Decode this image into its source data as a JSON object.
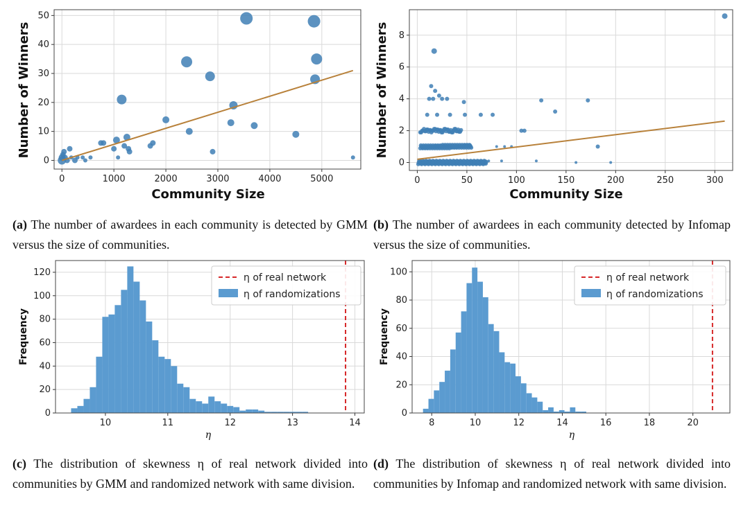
{
  "captions": {
    "a": {
      "tag": "(a)",
      "text": "The number of awardees in each community is detected by GMM versus the size of communities."
    },
    "b": {
      "tag": "(b)",
      "text": "The number of awardees in each community detected by Infomap versus the size of communities."
    },
    "c": {
      "tag": "(c)",
      "text": "The distribution of skewness η of real network divided into communities by GMM and randomized network with same division."
    },
    "d": {
      "tag": "(d)",
      "text": "The distribution of skewness η of real network divided into communities by Infomap and randomized network with same division."
    }
  },
  "colors": {
    "marker": "#3f7fb5",
    "bar": "#5b9bd0",
    "fit": "#b8813a",
    "real_line": "#d62728",
    "grid": "#d9d9d9"
  },
  "chart_data": [
    {
      "id": "a",
      "type": "scatter",
      "xlabel": "Community Size",
      "ylabel": "Number of Winners",
      "xlim": [
        -150,
        5750
      ],
      "ylim": [
        -3,
        52
      ],
      "xticks": [
        0,
        1000,
        2000,
        3000,
        4000,
        5000
      ],
      "yticks": [
        0,
        10,
        20,
        30,
        40,
        50
      ],
      "grid": true,
      "fit_line": {
        "x": [
          0,
          5600
        ],
        "y": [
          0,
          31
        ]
      },
      "points": [
        [
          0,
          0,
          6
        ],
        [
          5,
          1,
          5
        ],
        [
          20,
          2,
          4
        ],
        [
          40,
          3,
          4
        ],
        [
          60,
          1,
          4
        ],
        [
          100,
          0,
          4
        ],
        [
          150,
          4,
          4
        ],
        [
          180,
          1,
          3
        ],
        [
          250,
          0,
          4
        ],
        [
          300,
          1,
          3
        ],
        [
          400,
          1,
          3
        ],
        [
          450,
          0,
          3
        ],
        [
          550,
          1,
          3
        ],
        [
          750,
          6,
          4
        ],
        [
          800,
          6,
          4
        ],
        [
          1000,
          4,
          4
        ],
        [
          1050,
          7,
          5
        ],
        [
          1080,
          1,
          3
        ],
        [
          1150,
          21,
          7
        ],
        [
          1200,
          5,
          4
        ],
        [
          1250,
          8,
          5
        ],
        [
          1280,
          4,
          4
        ],
        [
          1300,
          3,
          4
        ],
        [
          1700,
          5,
          4
        ],
        [
          1750,
          6,
          4
        ],
        [
          2000,
          14,
          5
        ],
        [
          2400,
          34,
          8
        ],
        [
          2450,
          10,
          5
        ],
        [
          2850,
          29,
          7
        ],
        [
          2900,
          3,
          4
        ],
        [
          3250,
          13,
          5
        ],
        [
          3300,
          19,
          6
        ],
        [
          3550,
          49,
          9
        ],
        [
          3700,
          12,
          5
        ],
        [
          4500,
          9,
          5
        ],
        [
          4850,
          48,
          9
        ],
        [
          4900,
          35,
          8
        ],
        [
          4870,
          28,
          7
        ],
        [
          5600,
          1,
          3
        ]
      ]
    },
    {
      "id": "b",
      "type": "scatter",
      "xlabel": "Community Size",
      "ylabel": "Number of Winners",
      "xlim": [
        -8,
        318
      ],
      "ylim": [
        -0.5,
        9.6
      ],
      "xticks": [
        0,
        50,
        100,
        150,
        200,
        250,
        300
      ],
      "yticks": [
        0,
        2,
        4,
        6,
        8
      ],
      "grid": true,
      "fit_line": {
        "x": [
          0,
          310
        ],
        "y": [
          0.2,
          2.6
        ]
      },
      "points": [
        [
          310,
          9.2,
          4
        ],
        [
          17,
          7,
          4
        ],
        [
          14,
          4.8,
          3
        ],
        [
          18,
          4.5,
          3
        ],
        [
          22,
          4.2,
          3
        ],
        [
          12,
          4,
          3
        ],
        [
          16,
          4,
          3
        ],
        [
          25,
          4,
          3
        ],
        [
          30,
          4,
          3
        ],
        [
          47,
          3.8,
          3
        ],
        [
          125,
          3.9,
          3
        ],
        [
          172,
          3.9,
          3
        ],
        [
          139,
          3.2,
          3
        ],
        [
          10,
          3,
          3
        ],
        [
          20,
          3,
          3
        ],
        [
          33,
          3,
          3
        ],
        [
          48,
          3,
          3
        ],
        [
          64,
          3,
          3
        ],
        [
          76,
          3,
          3
        ],
        [
          105,
          2,
          3
        ],
        [
          108,
          2,
          3
        ],
        [
          182,
          1,
          3
        ],
        [
          195,
          0,
          2
        ],
        [
          160,
          0,
          2
        ],
        [
          120,
          0.1,
          2
        ],
        [
          85,
          0.1,
          2
        ],
        [
          72,
          0.1,
          2
        ],
        [
          95,
          1,
          2
        ],
        [
          88,
          1,
          2
        ],
        [
          80,
          1,
          2
        ]
      ],
      "bands": [
        {
          "y": 0,
          "x_from": 1,
          "x_to": 70,
          "count": 140
        },
        {
          "y": 1,
          "x_from": 3,
          "x_to": 55,
          "count": 85
        },
        {
          "y": 2,
          "x_from": 3,
          "x_to": 45,
          "count": 45
        }
      ]
    },
    {
      "id": "c",
      "type": "histogram",
      "xlabel": "η",
      "ylabel": "Frequency",
      "xlim": [
        9.2,
        14.15
      ],
      "ylim": [
        0,
        130
      ],
      "xticks": [
        10,
        11,
        12,
        13,
        14
      ],
      "yticks": [
        0,
        20,
        40,
        60,
        80,
        100,
        120
      ],
      "grid": true,
      "legend": {
        "position": "top-right",
        "entries": [
          "η of real network",
          "η of randomizations"
        ]
      },
      "real_value": 13.85,
      "bins_start": 9.45,
      "bin_width": 0.1,
      "counts": [
        4,
        6,
        12,
        22,
        48,
        82,
        84,
        92,
        105,
        125,
        112,
        96,
        78,
        62,
        48,
        46,
        40,
        25,
        22,
        12,
        10,
        8,
        14,
        10,
        8,
        6,
        5,
        2,
        3,
        3,
        2,
        1,
        1,
        1,
        1,
        1,
        1,
        1
      ]
    },
    {
      "id": "d",
      "type": "histogram",
      "xlabel": "η",
      "ylabel": "Frequency",
      "xlim": [
        7.1,
        21.7
      ],
      "ylim": [
        0,
        108
      ],
      "xticks": [
        8,
        10,
        12,
        14,
        16,
        18,
        20
      ],
      "yticks": [
        0,
        20,
        40,
        60,
        80,
        100
      ],
      "grid": true,
      "legend": {
        "position": "top-right",
        "entries": [
          "η of real network",
          "η of randomizations"
        ]
      },
      "real_value": 20.9,
      "bins_start": 7.6,
      "bin_width": 0.25,
      "counts": [
        3,
        10,
        16,
        22,
        30,
        45,
        57,
        72,
        92,
        103,
        93,
        82,
        63,
        58,
        43,
        36,
        35,
        26,
        21,
        14,
        11,
        8,
        2,
        4,
        1,
        2,
        1,
        4,
        1,
        1
      ]
    }
  ]
}
